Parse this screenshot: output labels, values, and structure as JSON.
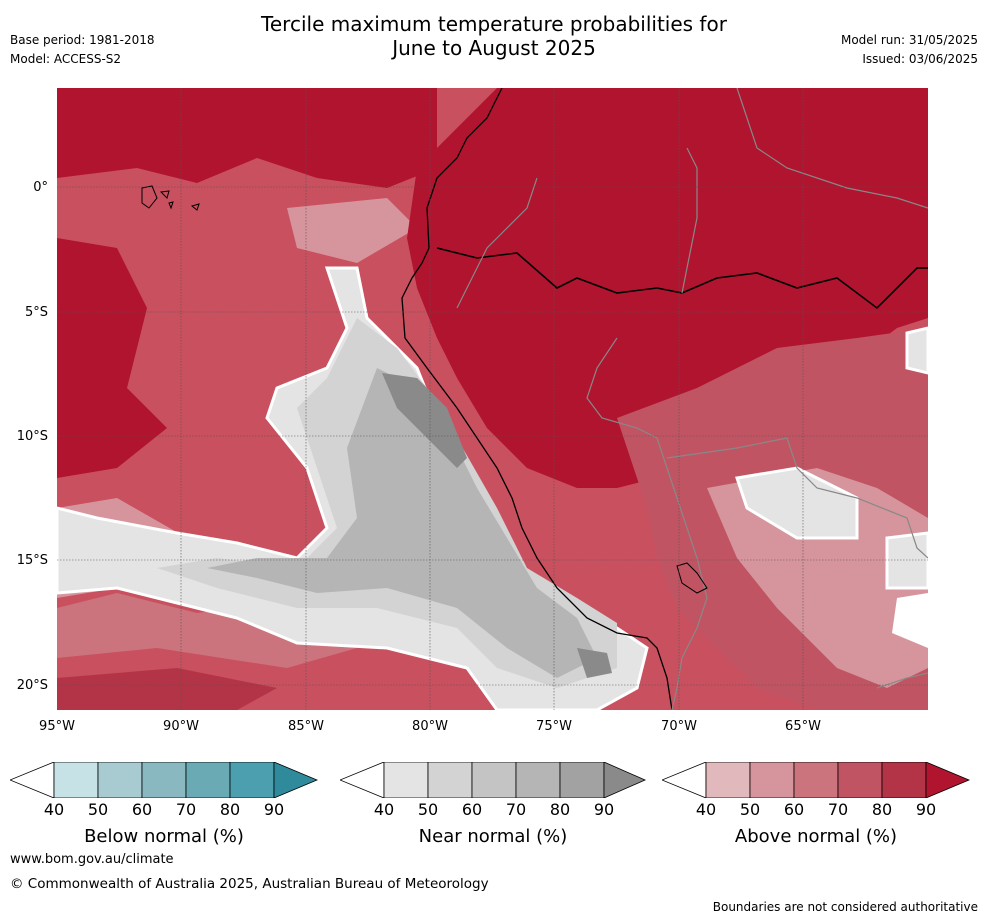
{
  "title": {
    "line1": "Tercile maximum temperature probabilities for",
    "line2": "June to August 2025"
  },
  "meta": {
    "base_period": "Base period: 1981-2018",
    "model": "Model: ACCESS-S2",
    "model_run": "Model run: 31/05/2025",
    "issued": "Issued: 03/06/2025"
  },
  "map": {
    "lat_ticks": [
      "0°",
      "5°S",
      "10°S",
      "15°S",
      "20°S"
    ],
    "lon_ticks": [
      "95°W",
      "90°W",
      "85°W",
      "80°W",
      "75°W",
      "70°W",
      "65°W"
    ],
    "land_color": "#b31d38",
    "ocean_base_color": "#c9505f"
  },
  "colorbars": [
    {
      "label": "Below normal (%)",
      "ticks": [
        "40",
        "50",
        "60",
        "70",
        "80",
        "90"
      ],
      "colors": [
        "#ffffff",
        "#c7e2e7",
        "#a7cbd1",
        "#8ab8c1",
        "#69aab5",
        "#4b9fae",
        "#2f8a9c"
      ]
    },
    {
      "label": "Near normal (%)",
      "ticks": [
        "40",
        "50",
        "60",
        "70",
        "80",
        "90"
      ],
      "colors": [
        "#ffffff",
        "#e4e4e4",
        "#d3d3d3",
        "#c4c4c4",
        "#b5b5b5",
        "#a2a2a2",
        "#8a8a8a"
      ]
    },
    {
      "label": "Above normal (%)",
      "ticks": [
        "40",
        "50",
        "60",
        "70",
        "80",
        "90"
      ],
      "colors": [
        "#ffffff",
        "#e1b9bd",
        "#d6959c",
        "#cb747d",
        "#c15463",
        "#b33347",
        "#b0142e"
      ]
    }
  ],
  "footer": {
    "url": "www.bom.gov.au/climate",
    "copyright": "© Commonwealth of Australia 2025, Australian Bureau of Meteorology",
    "disclaimer": "Boundaries are not considered authoritative"
  }
}
